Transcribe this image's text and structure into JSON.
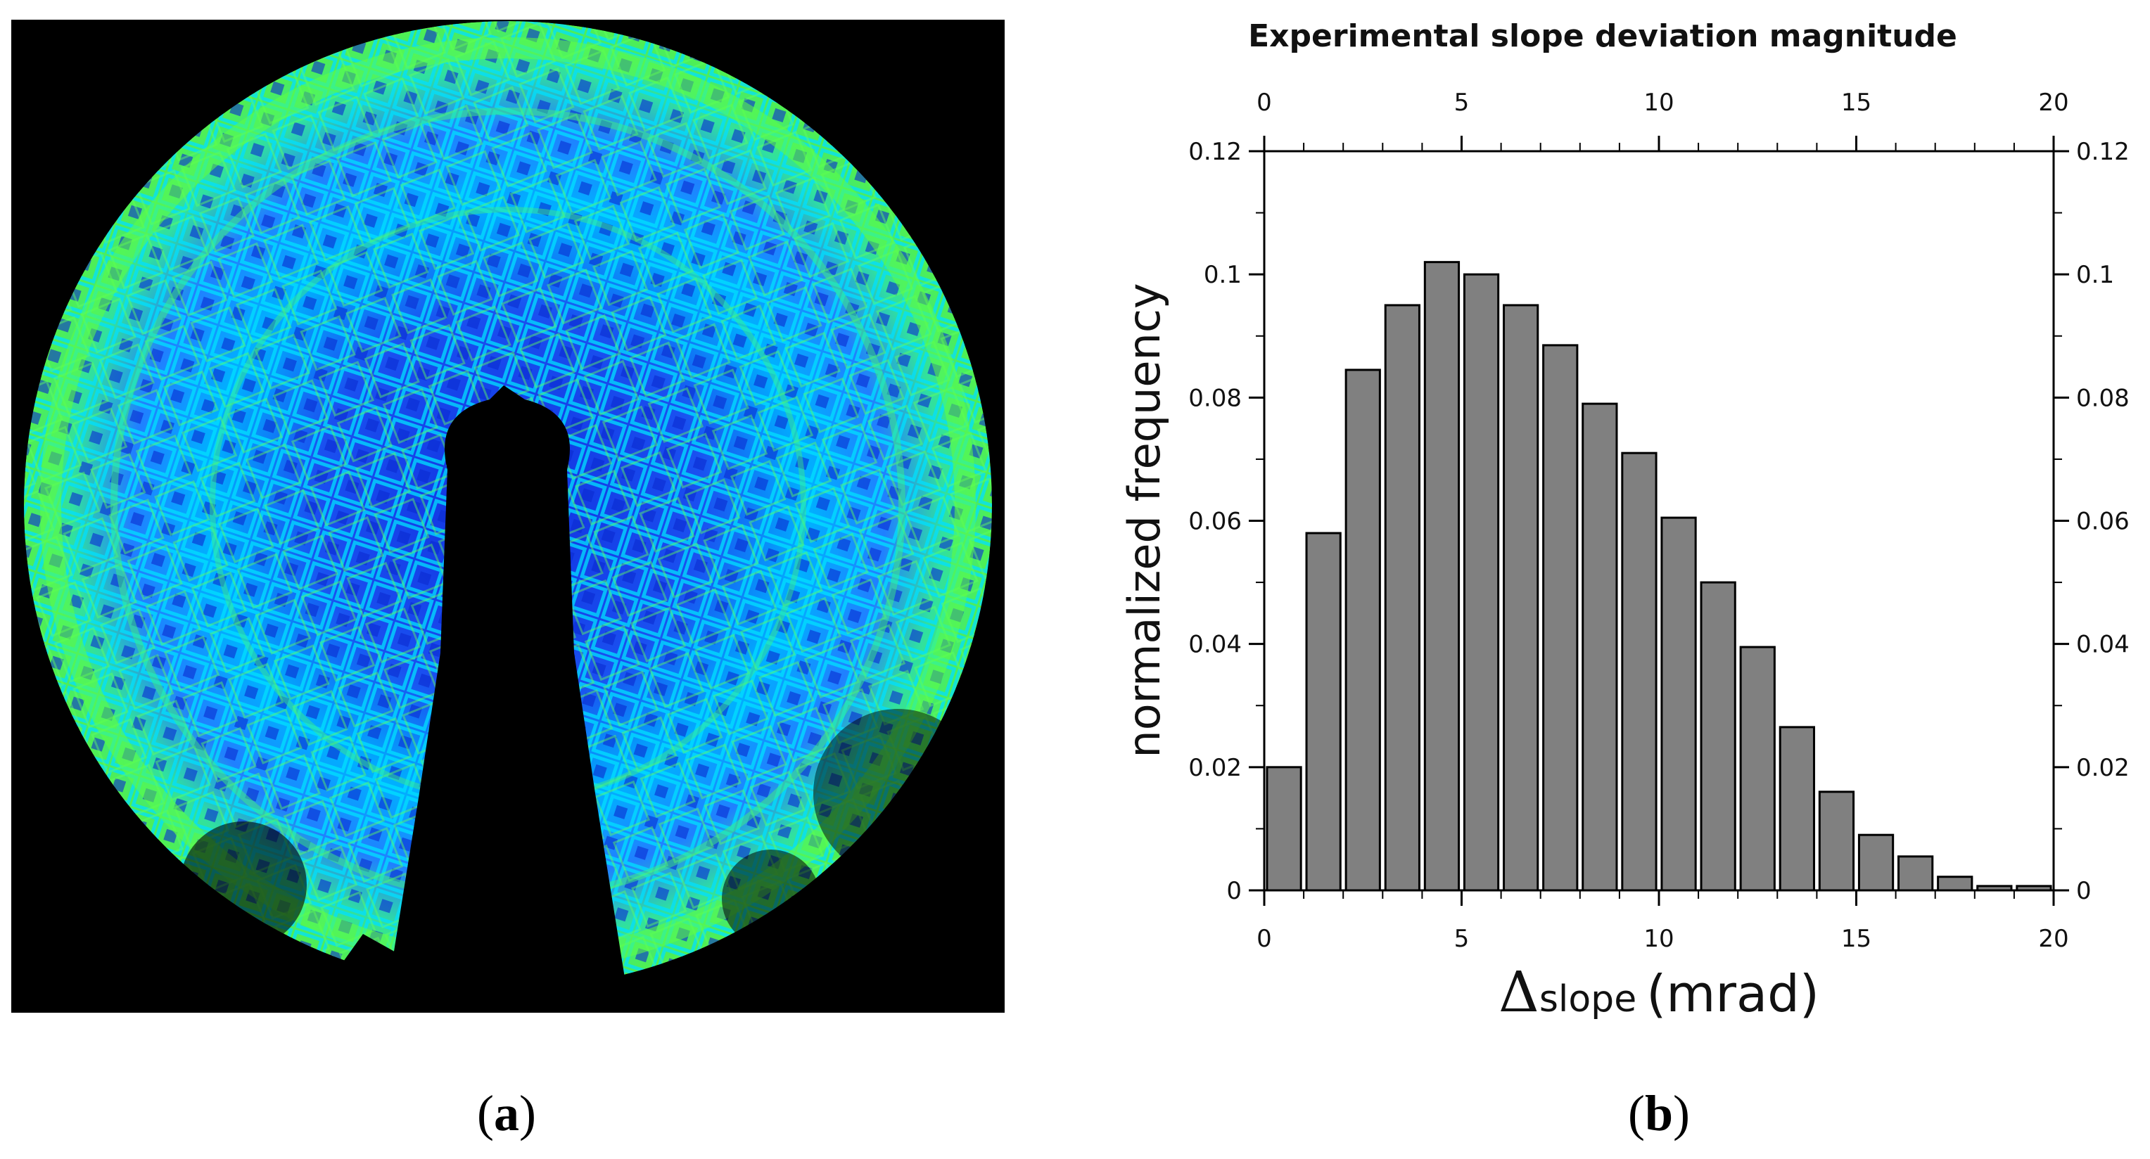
{
  "panels": {
    "a": {
      "label": "a"
    },
    "b": {
      "label": "b"
    }
  },
  "heatmap": {
    "description_colors": {
      "background": "#000000",
      "low": "#1030e0",
      "mid": "#00c8ff",
      "high": "#50f050"
    }
  },
  "chart_data": {
    "type": "bar",
    "title": "Experimental slope deviation magnitude",
    "xlabel_symbol": "Δ",
    "xlabel_sub": "slope",
    "xlabel_unit": "(mrad)",
    "ylabel": "normalized frequency",
    "xlim": [
      0,
      20
    ],
    "ylim": [
      0,
      0.12
    ],
    "bin_width": 1,
    "x": [
      0.5,
      1.5,
      2.5,
      3.5,
      4.5,
      5.5,
      6.5,
      7.5,
      8.5,
      9.5,
      10.5,
      11.5,
      12.5,
      13.5,
      14.5,
      15.5,
      16.5,
      17.5,
      18.5,
      19.5
    ],
    "values": [
      0.02,
      0.058,
      0.0845,
      0.095,
      0.102,
      0.1,
      0.095,
      0.0885,
      0.079,
      0.071,
      0.0605,
      0.05,
      0.0395,
      0.0265,
      0.016,
      0.009,
      0.0055,
      0.0022,
      0.0007,
      0.0007
    ],
    "x_ticks": [
      0,
      5,
      10,
      15,
      20
    ],
    "x_tick_labels": [
      "0",
      "5",
      "10",
      "15",
      "20"
    ],
    "y_ticks": [
      0,
      0.02,
      0.04,
      0.06,
      0.08,
      0.1,
      0.12
    ],
    "y_tick_labels": [
      "0",
      "0.02",
      "0.04",
      "0.06",
      "0.08",
      "0.1",
      "0.12"
    ],
    "bar_color": "#808080",
    "bar_edge_color": "#000000",
    "grid": false,
    "mirror_axes": true
  }
}
